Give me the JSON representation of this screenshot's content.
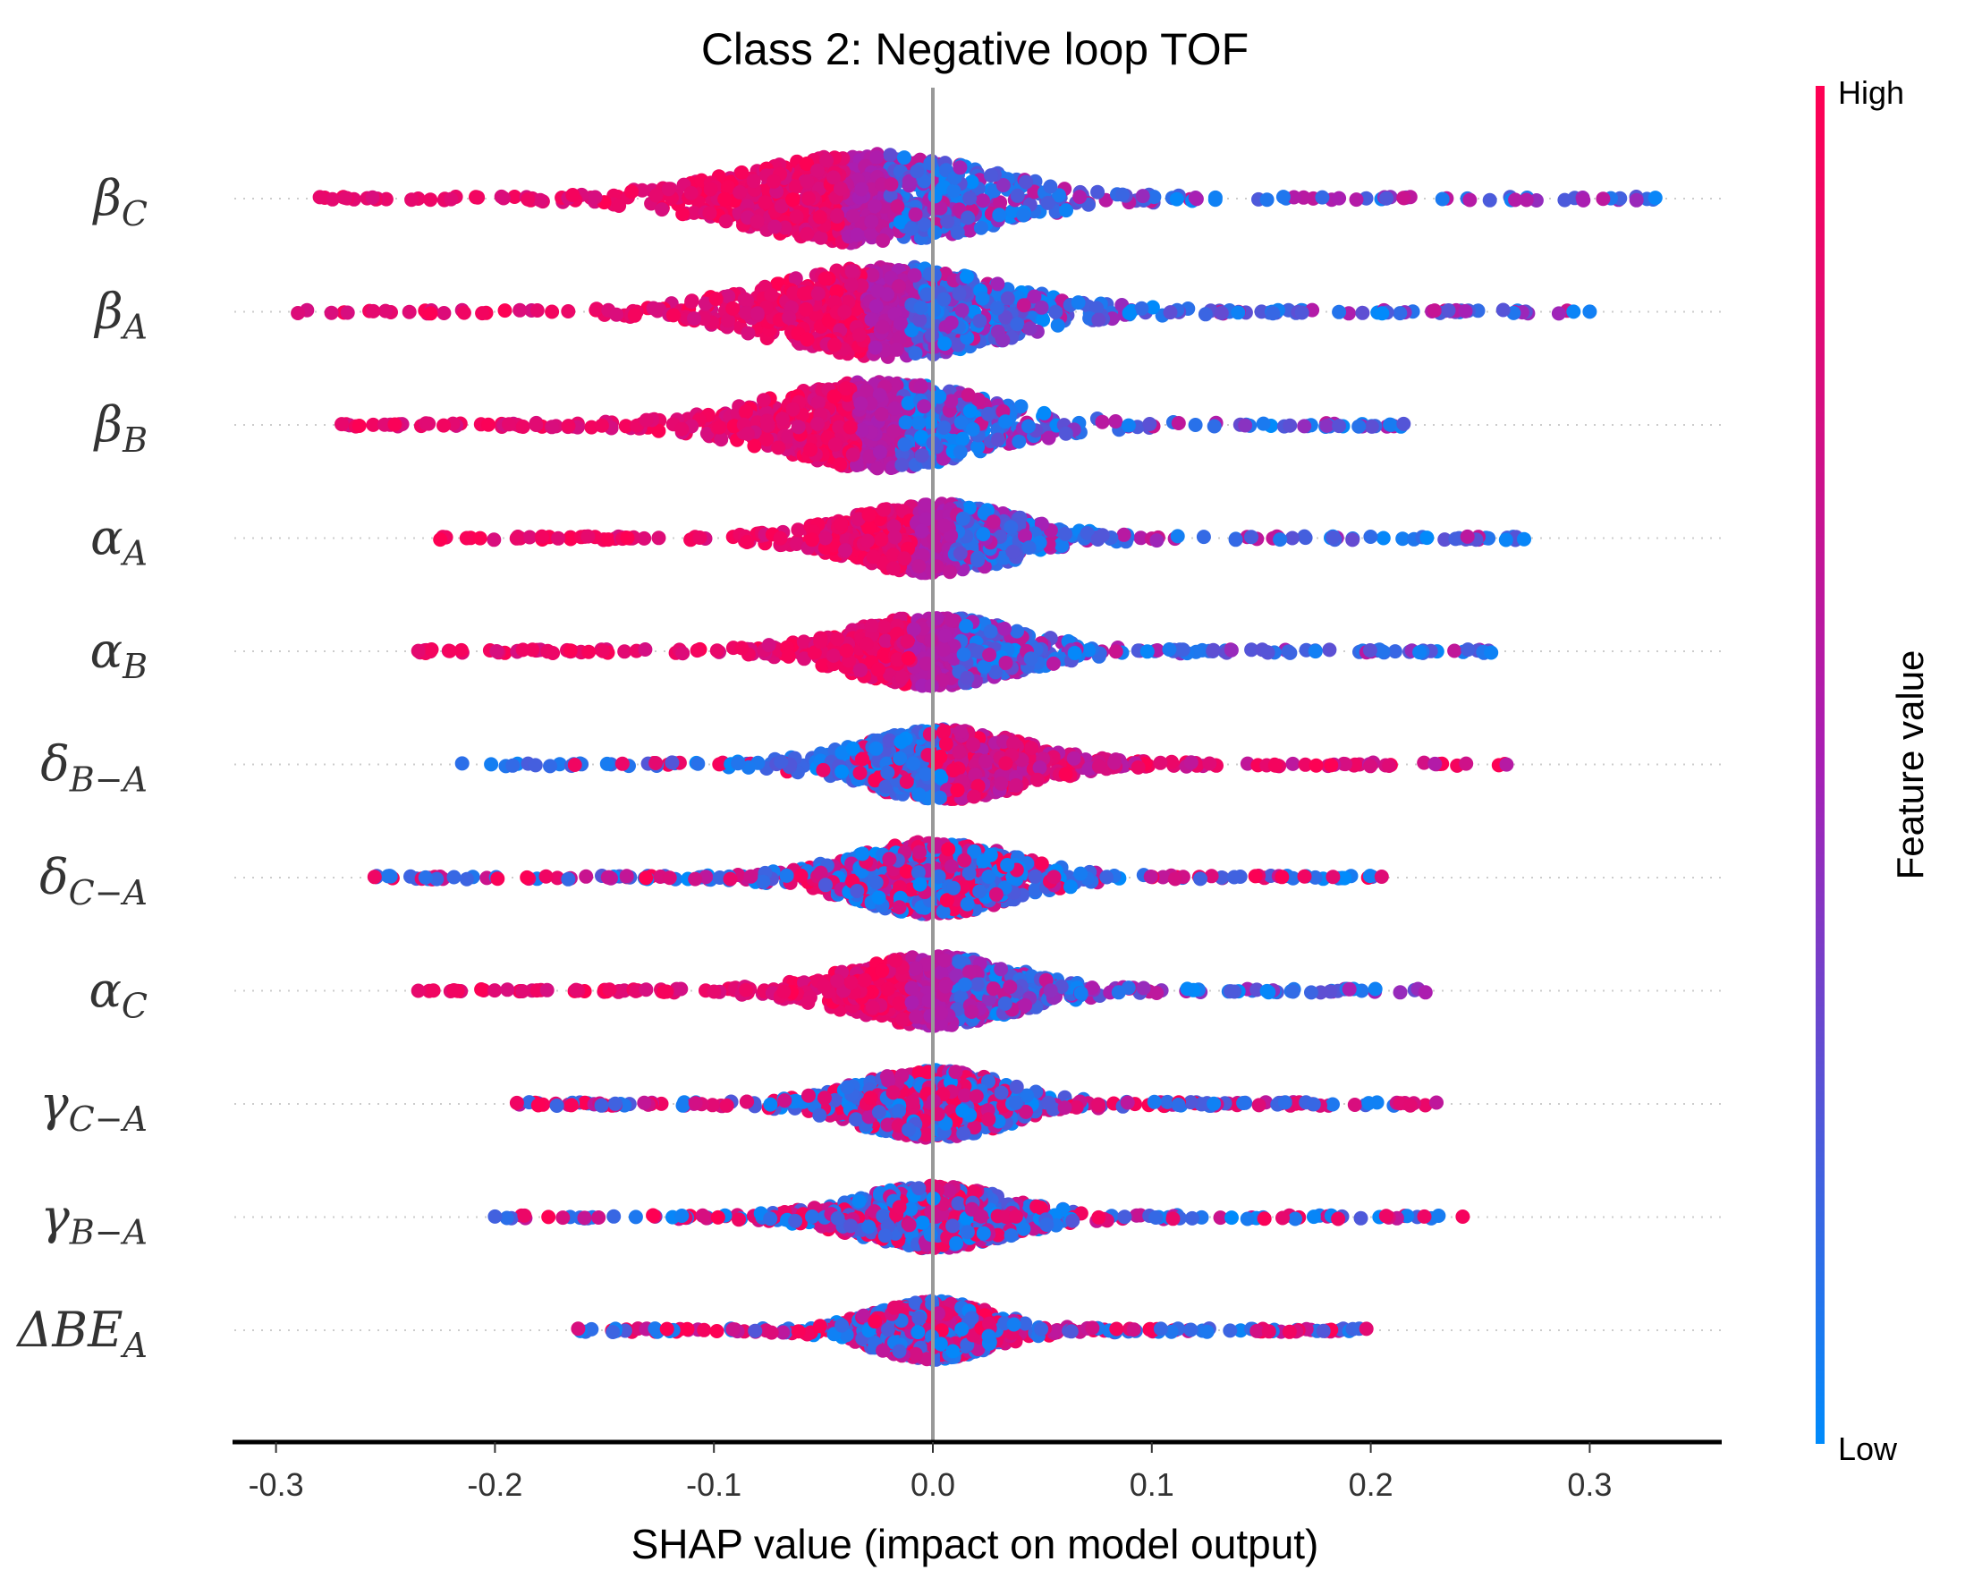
{
  "chart_data": {
    "type": "scatter",
    "subtype": "shap-beeswarm-summary",
    "title": "Class 2: Negative loop TOF",
    "xlabel": "SHAP value (impact on model output)",
    "xlim": [
      -0.32,
      0.36
    ],
    "xticks": [
      -0.3,
      -0.2,
      -0.1,
      0.0,
      0.1,
      0.2,
      0.3
    ],
    "xtick_labels": [
      "-0.3",
      "-0.2",
      "-0.1",
      "0.0",
      "0.1",
      "0.2",
      "0.3"
    ],
    "colorbar": {
      "label": "Feature value",
      "high_label": "High",
      "low_label": "Low",
      "high_color": "#ff0052",
      "mid_color": "#a81fb4",
      "low_color": "#008bfb"
    },
    "features": [
      {
        "symbol": "β",
        "sub": "C",
        "min": -0.28,
        "max": 0.33,
        "center": -0.03,
        "spread": 0.075,
        "high_side": "left",
        "max_height": 0.8
      },
      {
        "symbol": "β",
        "sub": "A",
        "min": -0.29,
        "max": 0.3,
        "center": -0.02,
        "spread": 0.07,
        "high_side": "left",
        "max_height": 0.82
      },
      {
        "symbol": "β",
        "sub": "B",
        "min": -0.27,
        "max": 0.215,
        "center": -0.025,
        "spread": 0.065,
        "high_side": "left",
        "max_height": 0.78
      },
      {
        "symbol": "α",
        "sub": "A",
        "min": -0.225,
        "max": 0.27,
        "center": 0.0,
        "spread": 0.05,
        "high_side": "left",
        "max_height": 0.62
      },
      {
        "symbol": "α",
        "sub": "B",
        "min": -0.235,
        "max": 0.255,
        "center": 0.0,
        "spread": 0.05,
        "high_side": "left",
        "max_height": 0.62
      },
      {
        "symbol": "δ",
        "sub": "B−A",
        "min": -0.215,
        "max": 0.262,
        "center": 0.005,
        "spread": 0.05,
        "high_side": "right",
        "max_height": 0.62
      },
      {
        "symbol": "δ",
        "sub": "C−A",
        "min": -0.255,
        "max": 0.205,
        "center": 0.0,
        "spread": 0.048,
        "high_side": "mixed",
        "max_height": 0.65
      },
      {
        "symbol": "α",
        "sub": "C",
        "min": -0.235,
        "max": 0.225,
        "center": 0.0,
        "spread": 0.05,
        "high_side": "left",
        "max_height": 0.62
      },
      {
        "symbol": "γ",
        "sub": "C−A",
        "min": -0.19,
        "max": 0.23,
        "center": 0.0,
        "spread": 0.045,
        "high_side": "mixed",
        "max_height": 0.6
      },
      {
        "symbol": "γ",
        "sub": "B−A",
        "min": -0.2,
        "max": 0.242,
        "center": 0.0,
        "spread": 0.045,
        "high_side": "mixed",
        "max_height": 0.55
      },
      {
        "symbol": "ΔBE",
        "sub": "A",
        "min": -0.162,
        "max": 0.198,
        "center": 0.0,
        "spread": 0.035,
        "high_side": "mixed",
        "max_height": 0.52
      }
    ]
  }
}
